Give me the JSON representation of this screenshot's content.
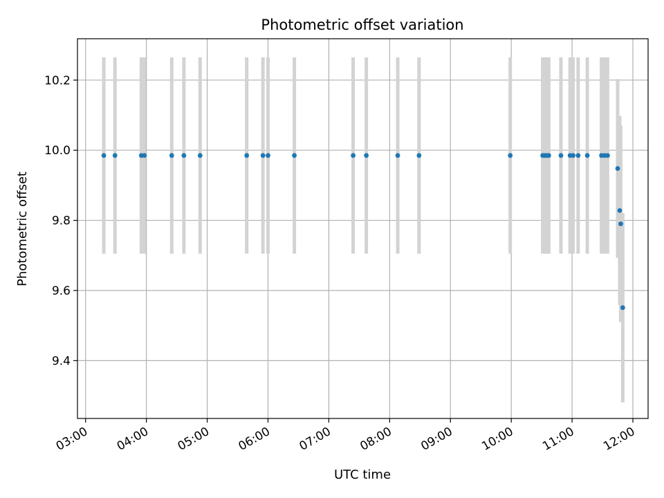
{
  "chart_data": {
    "type": "scatter",
    "title": "Photometric offset variation",
    "xlabel": "UTC time",
    "ylabel": "Photometric offset",
    "x_axis": "time (hours UTC)",
    "xlim": [
      "02:52",
      "12:15"
    ],
    "ylim": [
      9.235,
      10.318
    ],
    "x_ticks": [
      "03:00",
      "04:00",
      "05:00",
      "06:00",
      "07:00",
      "08:00",
      "09:00",
      "10:00",
      "11:00",
      "12:00"
    ],
    "y_ticks": [
      "9.4",
      "9.6",
      "9.8",
      "10.0",
      "10.2"
    ],
    "grid": true,
    "marker_color": "#1f77b4",
    "errorbar_color": "#d3d3d3",
    "points": [
      {
        "t": "03:18",
        "y": 9.985,
        "err": 0.28
      },
      {
        "t": "03:29",
        "y": 9.985,
        "err": 0.28
      },
      {
        "t": "03:55",
        "y": 9.985,
        "err": 0.28
      },
      {
        "t": "03:58",
        "y": 9.985,
        "err": 0.28
      },
      {
        "t": "04:25",
        "y": 9.985,
        "err": 0.28
      },
      {
        "t": "04:37",
        "y": 9.985,
        "err": 0.28
      },
      {
        "t": "04:53",
        "y": 9.985,
        "err": 0.28
      },
      {
        "t": "05:39",
        "y": 9.985,
        "err": 0.28
      },
      {
        "t": "05:55",
        "y": 9.985,
        "err": 0.28
      },
      {
        "t": "06:00",
        "y": 9.985,
        "err": 0.28
      },
      {
        "t": "06:26",
        "y": 9.985,
        "err": 0.28
      },
      {
        "t": "07:24",
        "y": 9.985,
        "err": 0.28
      },
      {
        "t": "07:37",
        "y": 9.985,
        "err": 0.28
      },
      {
        "t": "08:08",
        "y": 9.985,
        "err": 0.28
      },
      {
        "t": "08:29",
        "y": 9.985,
        "err": 0.28
      },
      {
        "t": "09:59",
        "y": 9.985,
        "err": 0.28
      },
      {
        "t": "10:31",
        "y": 9.985,
        "err": 0.28
      },
      {
        "t": "10:33",
        "y": 9.985,
        "err": 0.28
      },
      {
        "t": "10:35",
        "y": 9.985,
        "err": 0.28
      },
      {
        "t": "10:37",
        "y": 9.985,
        "err": 0.28
      },
      {
        "t": "10:49",
        "y": 9.985,
        "err": 0.28
      },
      {
        "t": "10:58",
        "y": 9.985,
        "err": 0.28
      },
      {
        "t": "11:01",
        "y": 9.985,
        "err": 0.28
      },
      {
        "t": "11:06",
        "y": 9.985,
        "err": 0.28
      },
      {
        "t": "11:15",
        "y": 9.985,
        "err": 0.28
      },
      {
        "t": "11:29",
        "y": 9.985,
        "err": 0.28
      },
      {
        "t": "11:32",
        "y": 9.985,
        "err": 0.28
      },
      {
        "t": "11:35",
        "y": 9.985,
        "err": 0.28
      },
      {
        "t": "11:45",
        "y": 9.948,
        "err": 0.255
      },
      {
        "t": "11:47",
        "y": 9.828,
        "err": 0.27
      },
      {
        "t": "11:48",
        "y": 9.79,
        "err": 0.28
      },
      {
        "t": "11:50",
        "y": 9.551,
        "err": 0.27
      }
    ]
  }
}
